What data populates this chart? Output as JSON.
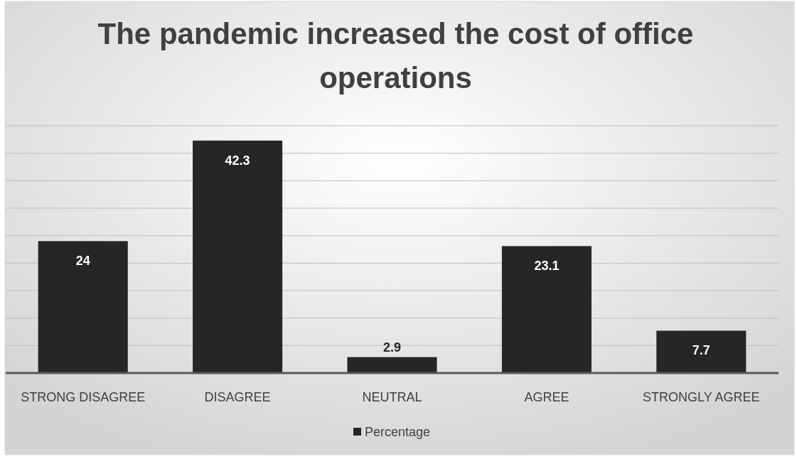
{
  "chart_data": {
    "type": "bar",
    "title": "The pandemic increased the cost of office operations",
    "categories": [
      "STRONG DISAGREE",
      "DISAGREE",
      "NEUTRAL",
      "AGREE",
      "STRONGLY AGREE"
    ],
    "series": [
      {
        "name": "Percentage",
        "color": "#262626",
        "values": [
          24,
          42.3,
          2.9,
          23.1,
          7.7
        ]
      }
    ],
    "ylim": [
      0,
      45
    ],
    "yticks": [
      {
        "value": 0,
        "label": null
      },
      {
        "value": 5,
        "label": null
      },
      {
        "value": 10,
        "label": null
      },
      {
        "value": 15,
        "label": null
      },
      {
        "value": 20,
        "label": null
      },
      {
        "value": 25,
        "label": null
      },
      {
        "value": 30,
        "label": null
      },
      {
        "value": 35,
        "label": null
      },
      {
        "value": 40,
        "label": null
      },
      {
        "value": 45,
        "label": null
      }
    ],
    "grid": "y",
    "data_labels": true,
    "legend": "bottom",
    "tick_labels": "x"
  }
}
